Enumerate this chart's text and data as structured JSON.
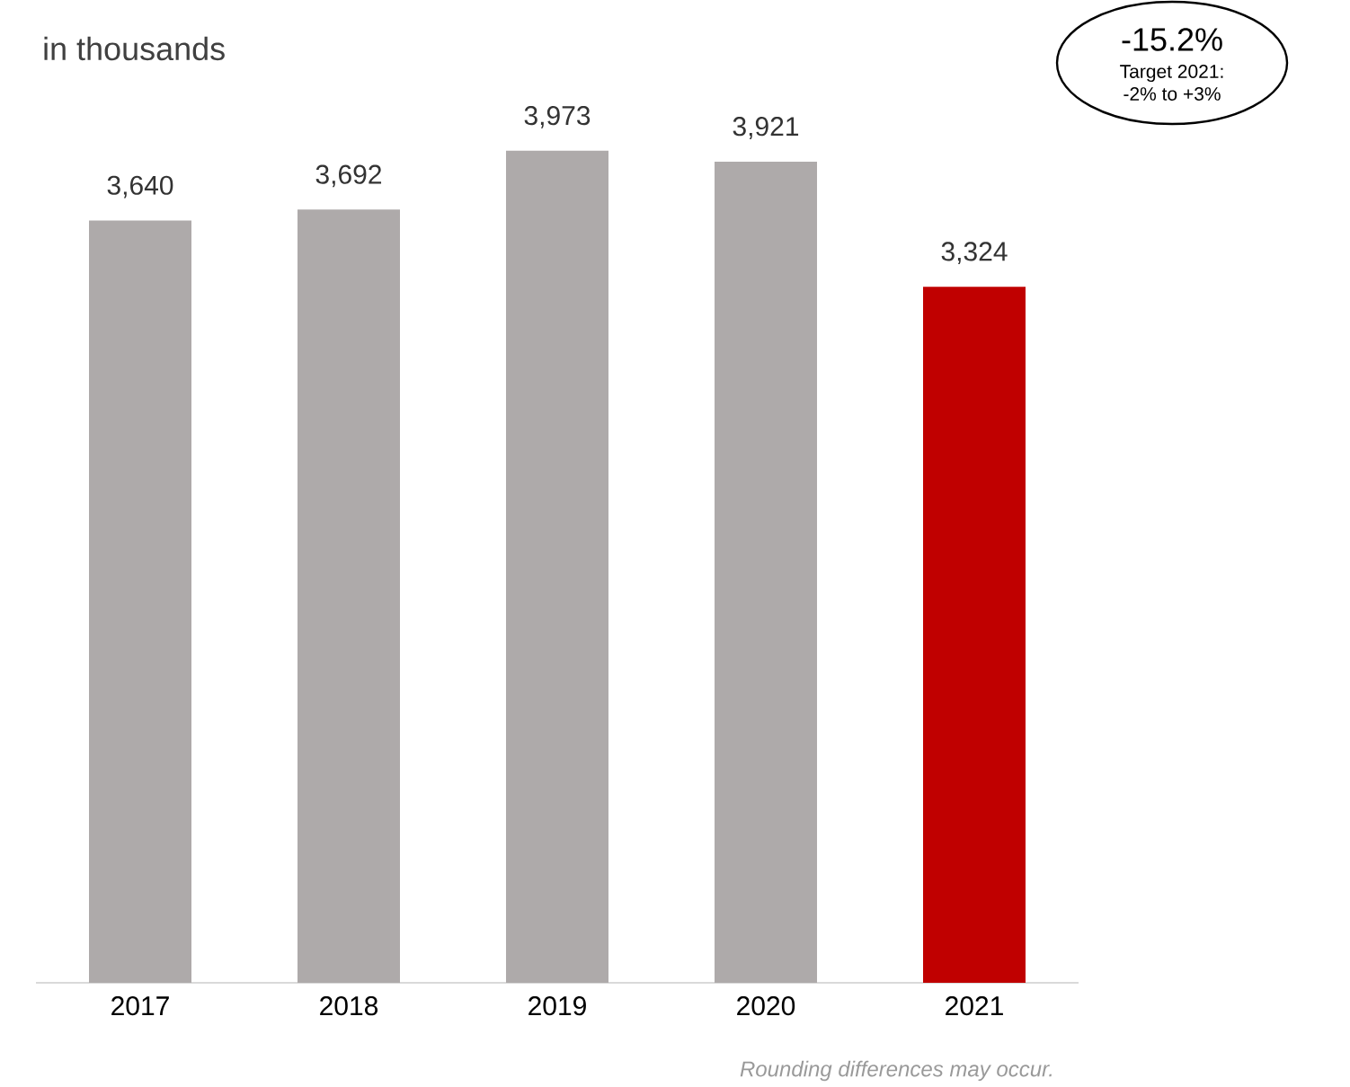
{
  "chart_data": {
    "type": "bar",
    "title": "in thousands",
    "categories": [
      "2017",
      "2018",
      "2019",
      "2020",
      "2021"
    ],
    "values": [
      3640,
      3692,
      3973,
      3921,
      3324
    ],
    "value_labels": [
      "3,640",
      "3,692",
      "3,973",
      "3,921",
      "3,324"
    ],
    "colors": [
      "#aeaaaa",
      "#aeaaaa",
      "#aeaaaa",
      "#aeaaaa",
      "#c00000"
    ],
    "tick_labels": "x",
    "grid": false,
    "annotations": [
      "-15.2%",
      "Target 2021:\n-2% to +3%",
      "Rounding differences may occur."
    ]
  }
}
